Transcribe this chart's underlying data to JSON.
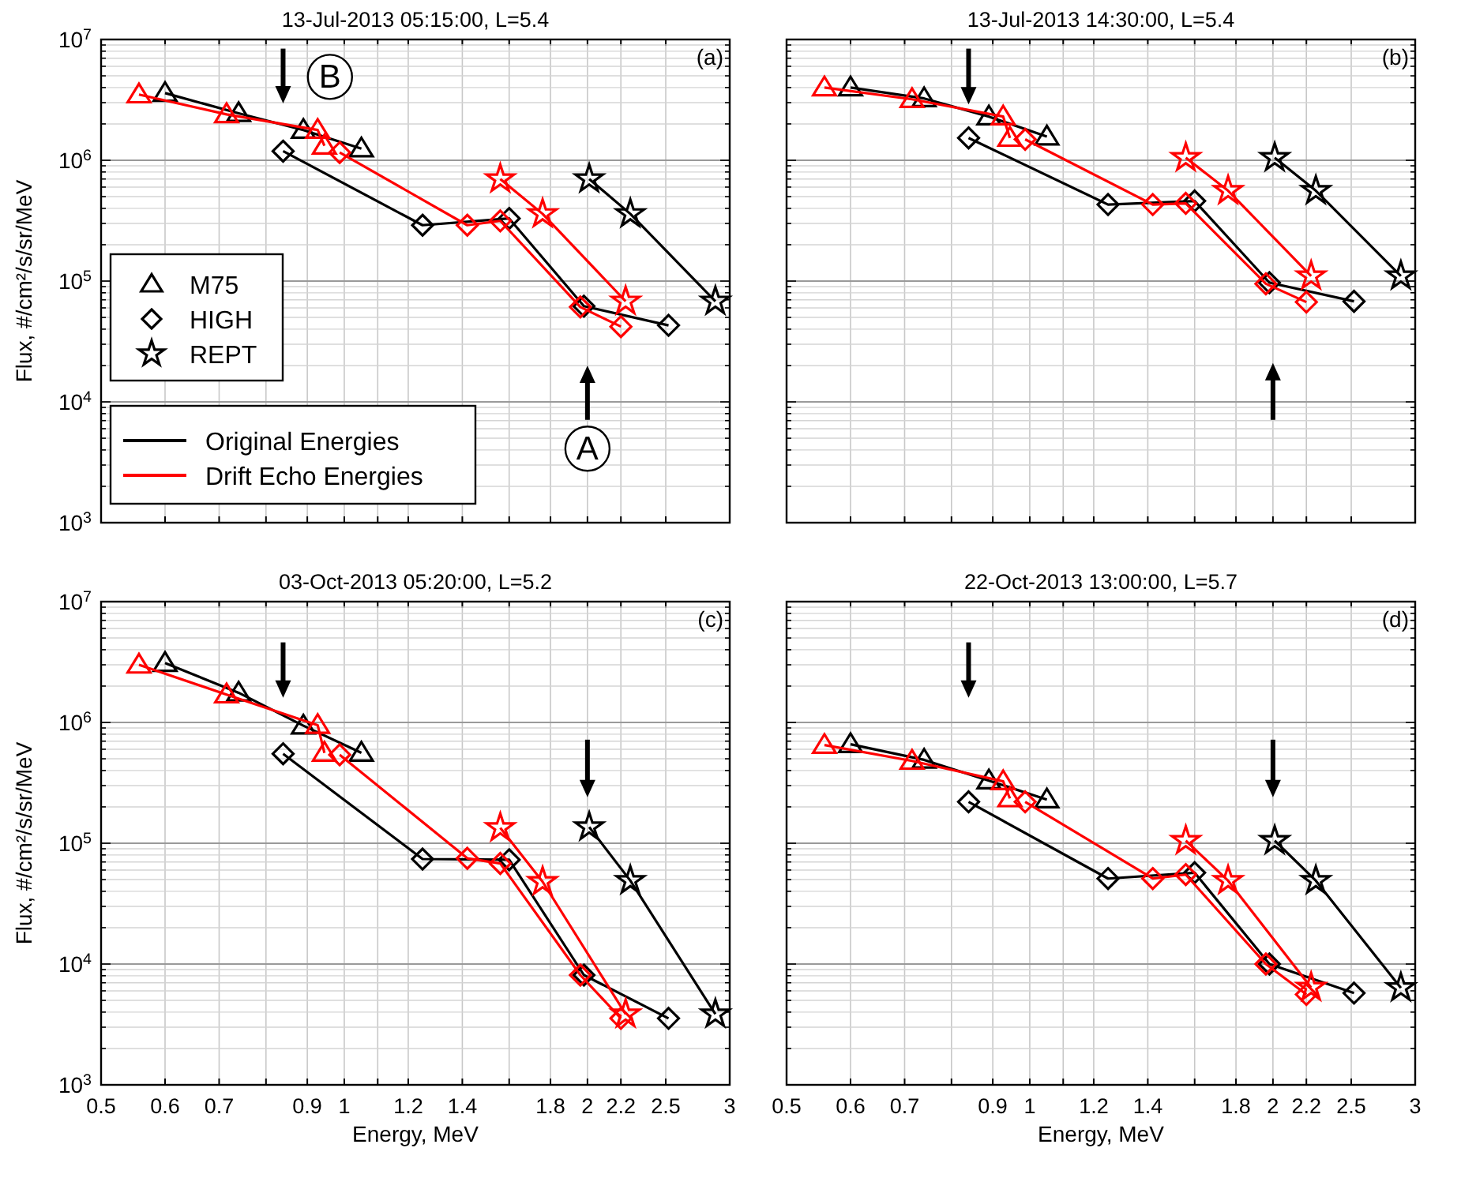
{
  "chart_data": [
    {
      "type": "line",
      "title": "13-Jul-2013 05:15:00, L=5.4",
      "ylabel": "Flux, #/cm²/s/sr/MeV",
      "log": "xy",
      "grid": true,
      "legend": "left",
      "tick_labels": "y",
      "xlim": [
        0.5,
        3
      ],
      "xticks": [
        0.5,
        0.6,
        0.7,
        0.8,
        0.9,
        1,
        1.1,
        1.2,
        1.4,
        1.6,
        1.8,
        2,
        2.2,
        2.5,
        3
      ],
      "ylim": [
        1000,
        10000000
      ],
      "yticks": [
        {
          "value": 1000,
          "label": "10$^{3}$"
        },
        {
          "value": 2000,
          "label": null
        },
        {
          "value": 3000,
          "label": null
        },
        {
          "value": 4000,
          "label": null
        },
        {
          "value": 5000,
          "label": null
        },
        {
          "value": 6000,
          "label": null
        },
        {
          "value": 7000,
          "label": null
        },
        {
          "value": 8000,
          "label": null
        },
        {
          "value": 9000,
          "label": null
        },
        {
          "value": 10000,
          "label": "10$^{4}$"
        },
        {
          "value": 20000,
          "label": null
        },
        {
          "value": 30000,
          "label": null
        },
        {
          "value": 40000,
          "label": null
        },
        {
          "value": 50000,
          "label": null
        },
        {
          "value": 60000,
          "label": null
        },
        {
          "value": 70000,
          "label": null
        },
        {
          "value": 80000,
          "label": null
        },
        {
          "value": 90000,
          "label": null
        },
        {
          "value": 100000,
          "label": "10$^{5}$"
        },
        {
          "value": 200000,
          "label": null
        },
        {
          "value": 300000,
          "label": null
        },
        {
          "value": 400000,
          "label": null
        },
        {
          "value": 500000,
          "label": null
        },
        {
          "value": 600000,
          "label": null
        },
        {
          "value": 700000,
          "label": null
        },
        {
          "value": 800000,
          "label": null
        },
        {
          "value": 900000,
          "label": null
        },
        {
          "value": 1000000,
          "label": "10$^{6}$"
        },
        {
          "value": 2000000,
          "label": null
        },
        {
          "value": 3000000,
          "label": null
        },
        {
          "value": 4000000,
          "label": null
        },
        {
          "value": 5000000,
          "label": null
        },
        {
          "value": 6000000,
          "label": null
        },
        {
          "value": 7000000,
          "label": null
        },
        {
          "value": 8000000,
          "label": null
        },
        {
          "value": 9000000,
          "label": null
        },
        {
          "value": 10000000,
          "label": "10$^{7}$"
        }
      ],
      "series": [
        {
          "name": "M75",
          "color": "#000000",
          "marker": "triangle",
          "x": [
            0.6,
            0.74,
            0.89,
            1.05
          ],
          "values": [
            3600000,
            2450000,
            1780000,
            1250000
          ]
        },
        {
          "name": "HIGH",
          "color": "#000000",
          "marker": "diamond",
          "x": [
            0.84,
            1.25,
            1.6,
            1.98,
            2.52
          ],
          "values": [
            1190000,
            290000,
            330000,
            62000,
            43000
          ]
        },
        {
          "name": "REPT",
          "color": "#000000",
          "marker": "star",
          "x": [
            2.01,
            2.26,
            2.88
          ],
          "values": [
            700000,
            360000,
            68000
          ]
        },
        {
          "color": "#ff0000",
          "marker": "triangle",
          "x": [
            0.557,
            0.715,
            0.927,
            0.945
          ],
          "values": [
            3500000,
            2400000,
            1780000,
            1320000
          ]
        },
        {
          "color": "#ff0000",
          "marker": "diamond",
          "x": [
            0.987,
            1.42,
            1.56,
            1.96,
            2.2
          ],
          "values": [
            1160000,
            290000,
            315000,
            61000,
            42000
          ]
        },
        {
          "color": "#ff0000",
          "marker": "star",
          "x": [
            1.56,
            1.76,
            2.23
          ],
          "values": [
            700000,
            360000,
            68000
          ]
        }
      ],
      "annotations": [
        "(a)",
        "Original Energies",
        "Drift Echo Energies",
        {
          "text": "B",
          "x": 0.96,
          "y": 4900000
        },
        {
          "text": "A",
          "x": 2,
          "y": 4100
        }
      ]
    },
    {
      "type": "line",
      "title": "13-Jul-2013 14:30:00, L=5.4",
      "log": "xy",
      "grid": true,
      "tick_labels": false,
      "xlim": [
        0.5,
        3
      ],
      "xticks": [
        0.5,
        0.6,
        0.7,
        0.8,
        0.9,
        1,
        1.1,
        1.2,
        1.4,
        1.6,
        1.8,
        2,
        2.2,
        2.5,
        3
      ],
      "ylim": [
        1000,
        10000000
      ],
      "yticks": [
        1000,
        2000,
        3000,
        4000,
        5000,
        6000,
        7000,
        8000,
        9000,
        10000,
        20000,
        30000,
        40000,
        50000,
        60000,
        70000,
        80000,
        90000,
        100000,
        200000,
        300000,
        400000,
        500000,
        600000,
        700000,
        800000,
        900000,
        1000000,
        2000000,
        3000000,
        4000000,
        5000000,
        6000000,
        7000000,
        8000000,
        9000000,
        10000000
      ],
      "series": [
        {
          "color": "#000000",
          "marker": "triangle",
          "x": [
            0.6,
            0.74,
            0.89,
            1.05
          ],
          "values": [
            4000000,
            3250000,
            2300000,
            1570000
          ]
        },
        {
          "color": "#000000",
          "marker": "diamond",
          "x": [
            0.84,
            1.25,
            1.6,
            1.98,
            2.52
          ],
          "values": [
            1530000,
            430000,
            460000,
            97000,
            68000
          ]
        },
        {
          "color": "#000000",
          "marker": "star",
          "x": [
            2.01,
            2.26,
            2.88
          ],
          "values": [
            1050000,
            560000,
            110000
          ]
        },
        {
          "color": "#ff0000",
          "marker": "triangle",
          "x": [
            0.557,
            0.715,
            0.927,
            0.945
          ],
          "values": [
            4000000,
            3200000,
            2300000,
            1530000
          ]
        },
        {
          "color": "#ff0000",
          "marker": "diamond",
          "x": [
            0.987,
            1.42,
            1.56,
            1.96,
            2.2
          ],
          "values": [
            1490000,
            430000,
            440000,
            95000,
            67000
          ]
        },
        {
          "color": "#ff0000",
          "marker": "star",
          "x": [
            1.56,
            1.76,
            2.23
          ],
          "values": [
            1050000,
            560000,
            110000
          ]
        }
      ],
      "annotations": [
        "(b)"
      ]
    },
    {
      "type": "line",
      "title": "03-Oct-2013 05:20:00, L=5.2",
      "xlabel": "Energy, MeV",
      "ylabel": "Flux, #/cm²/s/sr/MeV",
      "log": "xy",
      "grid": true,
      "xlim": [
        0.5,
        3
      ],
      "xticks": [
        0.5,
        0.6,
        0.7,
        {
          "value": 0.8,
          "label": null
        },
        0.9,
        1,
        {
          "value": 1.1,
          "label": null
        },
        1.2,
        1.4,
        {
          "value": 1.6,
          "label": null
        },
        1.8,
        2,
        2.2,
        2.5,
        3
      ],
      "ylim": [
        1000,
        10000000
      ],
      "yticks": [
        {
          "value": 1000,
          "label": "10$^{3}$"
        },
        {
          "value": 2000,
          "label": null
        },
        {
          "value": 3000,
          "label": null
        },
        {
          "value": 4000,
          "label": null
        },
        {
          "value": 5000,
          "label": null
        },
        {
          "value": 6000,
          "label": null
        },
        {
          "value": 7000,
          "label": null
        },
        {
          "value": 8000,
          "label": null
        },
        {
          "value": 9000,
          "label": null
        },
        {
          "value": 10000,
          "label": "10$^{4}$"
        },
        {
          "value": 20000,
          "label": null
        },
        {
          "value": 30000,
          "label": null
        },
        {
          "value": 40000,
          "label": null
        },
        {
          "value": 50000,
          "label": null
        },
        {
          "value": 60000,
          "label": null
        },
        {
          "value": 70000,
          "label": null
        },
        {
          "value": 80000,
          "label": null
        },
        {
          "value": 90000,
          "label": null
        },
        {
          "value": 100000,
          "label": "10$^{5}$"
        },
        {
          "value": 200000,
          "label": null
        },
        {
          "value": 300000,
          "label": null
        },
        {
          "value": 400000,
          "label": null
        },
        {
          "value": 500000,
          "label": null
        },
        {
          "value": 600000,
          "label": null
        },
        {
          "value": 700000,
          "label": null
        },
        {
          "value": 800000,
          "label": null
        },
        {
          "value": 900000,
          "label": null
        },
        {
          "value": 1000000,
          "label": "10$^{6}$"
        },
        {
          "value": 2000000,
          "label": null
        },
        {
          "value": 3000000,
          "label": null
        },
        {
          "value": 4000000,
          "label": null
        },
        {
          "value": 5000000,
          "label": null
        },
        {
          "value": 6000000,
          "label": null
        },
        {
          "value": 7000000,
          "label": null
        },
        {
          "value": 8000000,
          "label": null
        },
        {
          "value": 9000000,
          "label": null
        },
        {
          "value": 10000000,
          "label": "10$^{7}$"
        }
      ],
      "series": [
        {
          "color": "#000000",
          "marker": "triangle",
          "x": [
            0.6,
            0.74,
            0.89,
            1.05
          ],
          "values": [
            3100000,
            1760000,
            940000,
            560000
          ]
        },
        {
          "color": "#000000",
          "marker": "diamond",
          "x": [
            0.84,
            1.25,
            1.6,
            1.98,
            2.52
          ],
          "values": [
            550000,
            74000,
            73000,
            8100,
            3550
          ]
        },
        {
          "color": "#000000",
          "marker": "star",
          "x": [
            2.01,
            2.26,
            2.88
          ],
          "values": [
            136000,
            49000,
            3850
          ]
        },
        {
          "color": "#ff0000",
          "marker": "triangle",
          "x": [
            0.557,
            0.715,
            0.927,
            0.945
          ],
          "values": [
            3000000,
            1700000,
            950000,
            560000
          ]
        },
        {
          "color": "#ff0000",
          "marker": "diamond",
          "x": [
            0.987,
            1.42,
            1.56,
            1.96,
            2.2
          ],
          "values": [
            540000,
            75000,
            68000,
            8100,
            3550
          ]
        },
        {
          "color": "#ff0000",
          "marker": "star",
          "x": [
            1.56,
            1.76,
            2.23
          ],
          "values": [
            134000,
            48000,
            3850
          ]
        }
      ],
      "annotations": [
        "(c)"
      ]
    },
    {
      "type": "line",
      "title": "22-Oct-2013 13:00:00, L=5.7",
      "xlabel": "Energy, MeV",
      "log": "xy",
      "grid": true,
      "tick_labels": "x",
      "xlim": [
        0.5,
        3
      ],
      "xticks": [
        0.5,
        0.6,
        0.7,
        {
          "value": 0.8,
          "label": null
        },
        0.9,
        1,
        {
          "value": 1.1,
          "label": null
        },
        1.2,
        1.4,
        {
          "value": 1.6,
          "label": null
        },
        1.8,
        2,
        2.2,
        2.5,
        3
      ],
      "ylim": [
        1000,
        10000000
      ],
      "yticks": [
        1000,
        2000,
        3000,
        4000,
        5000,
        6000,
        7000,
        8000,
        9000,
        10000,
        20000,
        30000,
        40000,
        50000,
        60000,
        70000,
        80000,
        90000,
        100000,
        200000,
        300000,
        400000,
        500000,
        600000,
        700000,
        800000,
        900000,
        1000000,
        2000000,
        3000000,
        4000000,
        5000000,
        6000000,
        7000000,
        8000000,
        9000000,
        10000000
      ],
      "series": [
        {
          "color": "#000000",
          "marker": "triangle",
          "x": [
            0.6,
            0.74,
            0.89,
            1.05
          ],
          "values": [
            660000,
            490000,
            330000,
            230000
          ]
        },
        {
          "color": "#000000",
          "marker": "diamond",
          "x": [
            0.84,
            1.25,
            1.6,
            1.98,
            2.52
          ],
          "values": [
            220000,
            51000,
            57000,
            10000,
            5750
          ]
        },
        {
          "color": "#000000",
          "marker": "star",
          "x": [
            2.01,
            2.26,
            2.88
          ],
          "values": [
            105000,
            49000,
            6350
          ]
        },
        {
          "color": "#ff0000",
          "marker": "triangle",
          "x": [
            0.557,
            0.715,
            0.927,
            0.945
          ],
          "values": [
            650000,
            480000,
            325000,
            235000
          ]
        },
        {
          "color": "#ff0000",
          "marker": "diamond",
          "x": [
            0.987,
            1.42,
            1.56,
            1.96,
            2.2
          ],
          "values": [
            220000,
            51000,
            55000,
            10000,
            5600
          ]
        },
        {
          "color": "#ff0000",
          "marker": "star",
          "x": [
            1.56,
            1.76,
            2.23
          ],
          "values": [
            105000,
            49000,
            6400
          ]
        }
      ],
      "annotations": [
        "(d)"
      ]
    }
  ]
}
